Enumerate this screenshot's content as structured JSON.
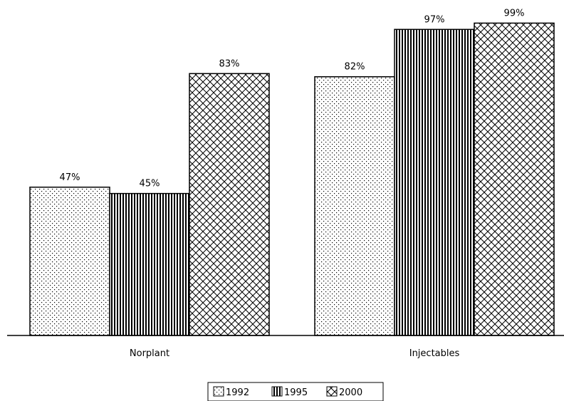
{
  "chart_data": {
    "type": "bar",
    "categories": [
      "Norplant",
      "Injectables"
    ],
    "series": [
      {
        "name": "1992",
        "values": [
          47,
          82
        ],
        "labels": [
          "47%",
          "82%"
        ],
        "pattern": "dots"
      },
      {
        "name": "1995",
        "values": [
          45,
          97
        ],
        "labels": [
          "45%",
          "97%"
        ],
        "pattern": "vertical-lines"
      },
      {
        "name": "2000",
        "values": [
          83,
          99
        ],
        "labels": [
          "83%",
          "99%"
        ],
        "pattern": "crosshatch"
      }
    ],
    "ylim": [
      0,
      100
    ],
    "grid": false,
    "legend_position": "bottom-center",
    "colors": {
      "fill": "#ffffff",
      "stroke": "#000000"
    }
  }
}
